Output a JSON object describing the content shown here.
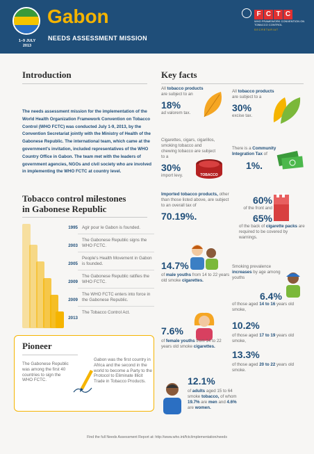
{
  "header": {
    "title": "Gabon",
    "subtitle": "NEEDS ASSESSMENT MISSION",
    "date_line1": "1–9 JULY",
    "date_line2": "2013",
    "logo_letters": [
      "F",
      "C",
      "T",
      "C"
    ],
    "logo_sub": "WHO FRAMEWORK CONVENTION ON TOBACCO CONTROL",
    "logo_sec": "SECRETARIAT"
  },
  "intro": {
    "title": "Introduction",
    "body": "The needs assessment mission for the implementation of the World Health Organization Framework Convention on Tobacco Control (WHO FCTC) was conducted July 1-9, 2013, by the Convention Secretariat jointly with the Ministry of Health of the Gabonese Republic. The international team, which came at the government's invitation, included representatives of the WHO Country Office in Gabon. The team met with the leaders of government agencies, NGOs and civil society who are involved in implementing the WHO FCTC at country level."
  },
  "key_facts": {
    "title": "Key facts",
    "f1": {
      "pre": "All",
      "bold": "tobacco products",
      "post": "are subject to an",
      "value": "18%",
      "tail": "ad valorem tax."
    },
    "f2": {
      "pre": "All",
      "bold": "tobacco products",
      "post": "are subject to a",
      "value": "30%",
      "tail": "excise tax."
    },
    "f3": {
      "text": "Cigarettes, cigars, cigarillos, smoking tobacco and chewing tobacco are subject to a",
      "value": "30%",
      "tail": "import levy.",
      "can_label": "TOBACCO"
    },
    "f4": {
      "pre": "There is a",
      "bold": "Community Integration Tax",
      "post": "of",
      "value": "1%."
    },
    "f5": {
      "bold": "Imported tobacco products,",
      "text": "other than those listed above, are subject to an overall tax of",
      "value": "70.19%."
    },
    "f6": {
      "value1": "60%",
      "text1": "of the front and",
      "value2": "65%",
      "text2": "of the back of",
      "bold": "cigarette packs",
      "tail": "are required to be covered by warnings."
    },
    "f7": {
      "value": "14.7%",
      "pre": "of",
      "bold": "male youths",
      "post": "from 14 to 22 years old smoke",
      "bold2": "cigarettes."
    },
    "f8": {
      "pre": "Smoking prevalence",
      "bold": "increases",
      "post": "by age among youths",
      "v1": "6.4%",
      "t1pre": "of those aged",
      "t1bold": "14 to 16",
      "t1post": "years old smoke,",
      "v2": "10.2%",
      "t2pre": "of those aged",
      "t2bold": "17 to 19",
      "t2post": "years old smoke,",
      "v3": "13.3%",
      "t3pre": "of those aged",
      "t3bold": "20 to 22",
      "t3post": "years old smoke."
    },
    "f9": {
      "value": "7.6%",
      "pre": "of",
      "bold": "female youths",
      "post": "from 14 to 22 years old smoke",
      "bold2": "cigarettes."
    },
    "f10": {
      "value": "12.1%",
      "pre": "of",
      "bold": "adults",
      "post": "aged 15 to 64 smoke",
      "bold2": "tobacco,",
      "post2": "of whom",
      "bold3": "19.7%",
      "post3": "are",
      "bold4": "men",
      "post4": "and",
      "bold5": "4.6%",
      "post5": "are",
      "bold6": "women."
    }
  },
  "milestones": {
    "title_line1": "Tobacco control milestones",
    "title_line2": "in Gabonese Republic",
    "items": [
      {
        "year": "1995",
        "text": "Agir pour le Gabon is founded."
      },
      {
        "year": "2003",
        "text": "The Gabonese Republic signs the WHO FCTC."
      },
      {
        "year": "2005",
        "text": "People's Health Movement in Gabon is founded."
      },
      {
        "year": "2009",
        "text": "The Gabonese Republic ratifies the WHO FCTC."
      },
      {
        "year": "2009",
        "text": "The WHO FCTC enters into force in the Gabonese Republic."
      },
      {
        "year": "2013",
        "text": "The Tobacco Control Act."
      }
    ]
  },
  "pioneer": {
    "title": "Pioneer",
    "left": "The Gabonese Republic was among the first 40 countries to sign the WHO FCTC.",
    "right": "Gabon was the first country in Africa and the second in the world to become a Party to the Protocol to Eliminate Illicit Trade in Tobacco Products."
  },
  "footer": "Find the full Needs Assessment Report at: http://www.who.int/fctc/implementation/needs",
  "colors": {
    "navy": "#1f4e79",
    "gold": "#f5b400",
    "red": "#e03030",
    "green": "#3a9a3a"
  }
}
